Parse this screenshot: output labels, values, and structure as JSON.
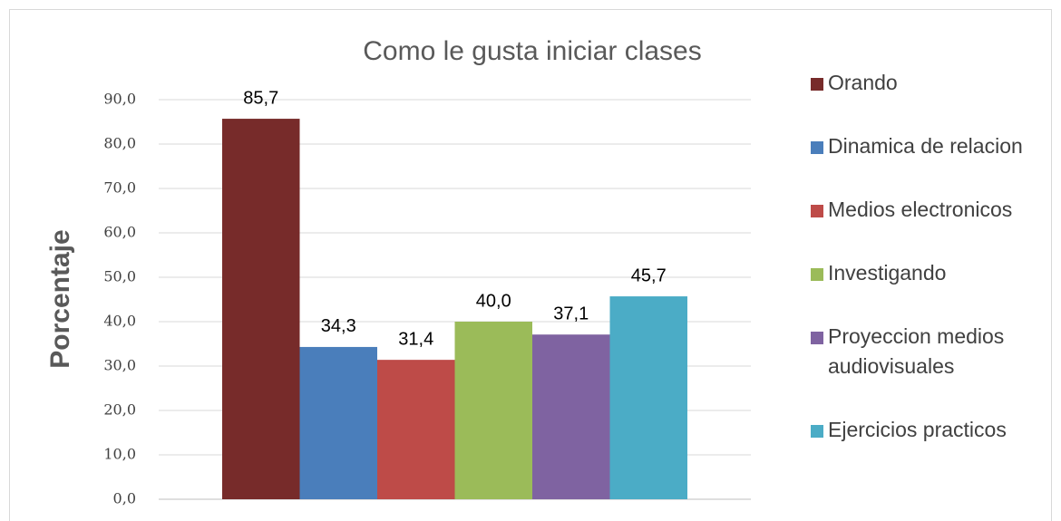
{
  "chart_data": {
    "type": "bar",
    "title": "Como le gusta iniciar clases",
    "y_label": "Porcentaje",
    "series": [
      {
        "name": "Orando",
        "color": "#772b2a",
        "values": [
          85.7
        ],
        "value_labels": [
          "85,7"
        ]
      },
      {
        "name": "Dinamica de relacion",
        "color": "#4a7ebb",
        "values": [
          34.3
        ],
        "value_labels": [
          "34,3"
        ]
      },
      {
        "name": "Medios electronicos",
        "color": "#be4b48",
        "values": [
          31.4
        ],
        "value_labels": [
          "31,4"
        ]
      },
      {
        "name": "Investigando",
        "color": "#9bbb59",
        "values": [
          40.0
        ],
        "value_labels": [
          "40,0"
        ]
      },
      {
        "name": "Proyeccion medios audiovisuales",
        "color": "#7f63a1",
        "values": [
          37.1
        ],
        "value_labels": [
          "37,1"
        ]
      },
      {
        "name": "Ejercicios practicos",
        "color": "#4bacc6",
        "values": [
          45.7
        ],
        "value_labels": [
          "45,7"
        ]
      }
    ],
    "ylim": [
      0,
      90
    ],
    "yticks": [
      {
        "value": 0,
        "label": "0,0"
      },
      {
        "value": 10,
        "label": "10,0"
      },
      {
        "value": 20,
        "label": "20,0"
      },
      {
        "value": 30,
        "label": "30,0"
      },
      {
        "value": 40,
        "label": "40,0"
      },
      {
        "value": 50,
        "label": "50,0"
      },
      {
        "value": 60,
        "label": "60,0"
      },
      {
        "value": 70,
        "label": "70,0"
      },
      {
        "value": 80,
        "label": "80,0"
      },
      {
        "value": 90,
        "label": "90,0"
      }
    ],
    "grid": true,
    "legend": "right"
  }
}
